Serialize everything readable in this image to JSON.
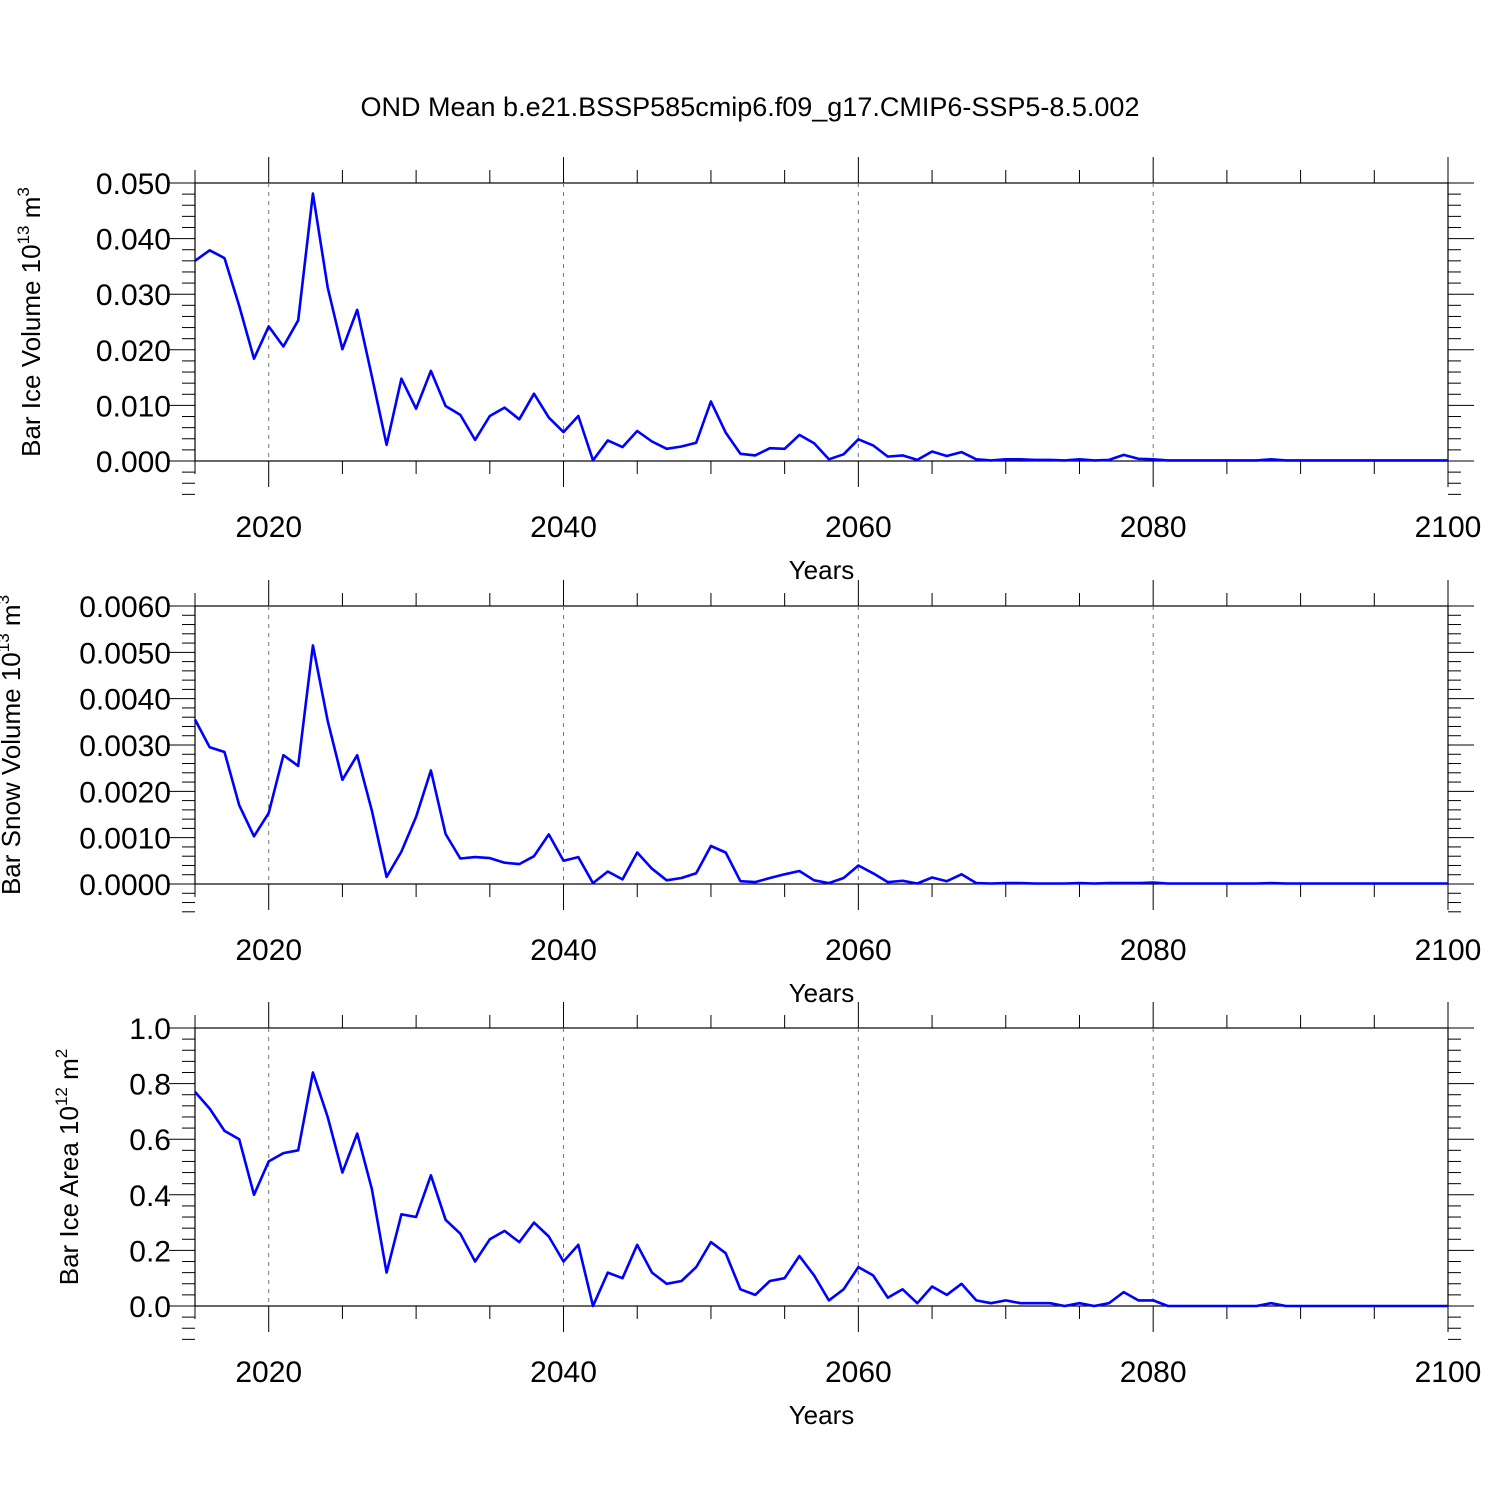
{
  "title": "OND Mean b.e21.BSSP585cmip6.f09_g17.CMIP6-SSP5-8.5.002",
  "line_color": "#0000ff",
  "chart_data": [
    {
      "type": "line",
      "xlabel": "Years",
      "ylabel": "Bar Ice Volume 10",
      "ylabel_sup1": "13",
      "ylabel_unit": " m",
      "ylabel_sup2": "3",
      "xlim": [
        2015,
        2100
      ],
      "ylim": [
        0,
        0.05
      ],
      "xticks": [
        2020,
        2040,
        2060,
        2080,
        2100
      ],
      "xtick_labels": [
        "2020",
        "2040",
        "2060",
        "2080",
        "2100"
      ],
      "yticks": [
        0,
        0.01,
        0.02,
        0.03,
        0.04,
        0.05
      ],
      "ytick_labels": [
        "0.000",
        "0.010",
        "0.020",
        "0.030",
        "0.040",
        "0.050"
      ],
      "x": [
        2015,
        2016,
        2017,
        2018,
        2019,
        2020,
        2021,
        2022,
        2023,
        2024,
        2025,
        2026,
        2027,
        2028,
        2029,
        2030,
        2031,
        2032,
        2033,
        2034,
        2035,
        2036,
        2037,
        2038,
        2039,
        2040,
        2041,
        2042,
        2043,
        2044,
        2045,
        2046,
        2047,
        2048,
        2049,
        2050,
        2051,
        2052,
        2053,
        2054,
        2055,
        2056,
        2057,
        2058,
        2059,
        2060,
        2061,
        2062,
        2063,
        2064,
        2065,
        2066,
        2067,
        2068,
        2069,
        2070,
        2071,
        2072,
        2073,
        2074,
        2075,
        2076,
        2077,
        2078,
        2079,
        2080,
        2081,
        2082,
        2083,
        2084,
        2085,
        2086,
        2087,
        2088,
        2089,
        2090,
        2091,
        2092,
        2093,
        2094,
        2095,
        2096,
        2097,
        2098,
        2099,
        2100
      ],
      "values": [
        0.036,
        0.0379,
        0.0365,
        0.0279,
        0.0184,
        0.0242,
        0.0206,
        0.0253,
        0.0481,
        0.0312,
        0.0201,
        0.0272,
        0.0152,
        0.0029,
        0.0148,
        0.0094,
        0.0162,
        0.0099,
        0.0083,
        0.0038,
        0.0081,
        0.0096,
        0.0075,
        0.0121,
        0.0078,
        0.0052,
        0.0081,
        0.0001,
        0.0037,
        0.0025,
        0.0054,
        0.0035,
        0.0022,
        0.0026,
        0.0033,
        0.0107,
        0.0051,
        0.0013,
        0.001,
        0.0023,
        0.0022,
        0.0047,
        0.0032,
        0.0003,
        0.0012,
        0.0039,
        0.0028,
        0.0008,
        0.001,
        0.0002,
        0.0017,
        0.0009,
        0.0016,
        0.0003,
        0.0001,
        0.0003,
        0.0003,
        0.0002,
        0.0002,
        0.0001,
        0.0003,
        0.0001,
        0.0002,
        0.0011,
        0.0004,
        0.0003,
        0.0001,
        0.0001,
        0.0001,
        0.0001,
        0.0001,
        0.0001,
        0.0001,
        0.0003,
        0.0001,
        0.0001,
        0.0001,
        0.0001,
        0.0001,
        0.0001,
        0.0001,
        0.0001,
        0.0001,
        0.0001,
        0.0001,
        0.0001
      ]
    },
    {
      "type": "line",
      "xlabel": "Years",
      "ylabel": "Bar Snow Volume 10",
      "ylabel_sup1": "13",
      "ylabel_unit": " m",
      "ylabel_sup2": "3",
      "xlim": [
        2015,
        2100
      ],
      "ylim": [
        0,
        0.006
      ],
      "xticks": [
        2020,
        2040,
        2060,
        2080,
        2100
      ],
      "xtick_labels": [
        "2020",
        "2040",
        "2060",
        "2080",
        "2100"
      ],
      "yticks": [
        0,
        0.001,
        0.002,
        0.003,
        0.004,
        0.005,
        0.006
      ],
      "ytick_labels": [
        "0.0000",
        "0.0010",
        "0.0020",
        "0.0030",
        "0.0040",
        "0.0050",
        "0.0060"
      ],
      "x": [
        2015,
        2016,
        2017,
        2018,
        2019,
        2020,
        2021,
        2022,
        2023,
        2024,
        2025,
        2026,
        2027,
        2028,
        2029,
        2030,
        2031,
        2032,
        2033,
        2034,
        2035,
        2036,
        2037,
        2038,
        2039,
        2040,
        2041,
        2042,
        2043,
        2044,
        2045,
        2046,
        2047,
        2048,
        2049,
        2050,
        2051,
        2052,
        2053,
        2054,
        2055,
        2056,
        2057,
        2058,
        2059,
        2060,
        2061,
        2062,
        2063,
        2064,
        2065,
        2066,
        2067,
        2068,
        2069,
        2070,
        2071,
        2072,
        2073,
        2074,
        2075,
        2076,
        2077,
        2078,
        2079,
        2080,
        2081,
        2082,
        2083,
        2084,
        2085,
        2086,
        2087,
        2088,
        2089,
        2090,
        2091,
        2092,
        2093,
        2094,
        2095,
        2096,
        2097,
        2098,
        2099,
        2100
      ],
      "values": [
        0.00355,
        0.00295,
        0.00285,
        0.0017,
        0.00103,
        0.00153,
        0.00278,
        0.00255,
        0.00515,
        0.00352,
        0.00225,
        0.00278,
        0.00158,
        0.00015,
        0.0007,
        0.00145,
        0.00245,
        0.00108,
        0.00055,
        0.00058,
        0.00056,
        0.00046,
        0.00043,
        0.0006,
        0.00107,
        0.0005,
        0.00058,
        2e-05,
        0.00027,
        0.0001,
        0.00068,
        0.00033,
        8e-05,
        0.00013,
        0.00023,
        0.00082,
        0.00068,
        6e-05,
        4e-05,
        0.00013,
        0.00021,
        0.00028,
        8e-05,
        2e-05,
        0.00013,
        0.0004,
        0.00023,
        4e-05,
        7e-05,
        1e-05,
        0.00014,
        6e-05,
        0.00021,
        2e-05,
        1e-05,
        2e-05,
        2e-05,
        1e-05,
        1e-05,
        1e-05,
        2e-05,
        1e-05,
        2e-05,
        2e-05,
        2e-05,
        3e-05,
        1e-05,
        1e-05,
        1e-05,
        1e-05,
        1e-05,
        1e-05,
        1e-05,
        2e-05,
        1e-05,
        1e-05,
        1e-05,
        1e-05,
        1e-05,
        1e-05,
        1e-05,
        1e-05,
        1e-05,
        1e-05,
        1e-05,
        1e-05
      ]
    },
    {
      "type": "line",
      "xlabel": "Years",
      "ylabel": "Bar Ice Area 10",
      "ylabel_sup1": "12",
      "ylabel_unit": " m",
      "ylabel_sup2": "2",
      "xlim": [
        2015,
        2100
      ],
      "ylim": [
        0,
        1.0
      ],
      "xticks": [
        2020,
        2040,
        2060,
        2080,
        2100
      ],
      "xtick_labels": [
        "2020",
        "2040",
        "2060",
        "2080",
        "2100"
      ],
      "yticks": [
        0,
        0.2,
        0.4,
        0.6,
        0.8,
        1.0
      ],
      "ytick_labels": [
        "0.0",
        "0.2",
        "0.4",
        "0.6",
        "0.8",
        "1.0"
      ],
      "x": [
        2015,
        2016,
        2017,
        2018,
        2019,
        2020,
        2021,
        2022,
        2023,
        2024,
        2025,
        2026,
        2027,
        2028,
        2029,
        2030,
        2031,
        2032,
        2033,
        2034,
        2035,
        2036,
        2037,
        2038,
        2039,
        2040,
        2041,
        2042,
        2043,
        2044,
        2045,
        2046,
        2047,
        2048,
        2049,
        2050,
        2051,
        2052,
        2053,
        2054,
        2055,
        2056,
        2057,
        2058,
        2059,
        2060,
        2061,
        2062,
        2063,
        2064,
        2065,
        2066,
        2067,
        2068,
        2069,
        2070,
        2071,
        2072,
        2073,
        2074,
        2075,
        2076,
        2077,
        2078,
        2079,
        2080,
        2081,
        2082,
        2083,
        2084,
        2085,
        2086,
        2087,
        2088,
        2089,
        2090,
        2091,
        2092,
        2093,
        2094,
        2095,
        2096,
        2097,
        2098,
        2099,
        2100
      ],
      "values": [
        0.77,
        0.71,
        0.63,
        0.6,
        0.4,
        0.52,
        0.55,
        0.56,
        0.84,
        0.68,
        0.48,
        0.62,
        0.42,
        0.12,
        0.33,
        0.32,
        0.47,
        0.31,
        0.26,
        0.16,
        0.24,
        0.27,
        0.23,
        0.3,
        0.25,
        0.16,
        0.22,
        0.0,
        0.12,
        0.1,
        0.22,
        0.12,
        0.08,
        0.09,
        0.14,
        0.23,
        0.19,
        0.06,
        0.04,
        0.09,
        0.1,
        0.18,
        0.11,
        0.02,
        0.06,
        0.14,
        0.11,
        0.03,
        0.06,
        0.01,
        0.07,
        0.04,
        0.08,
        0.02,
        0.01,
        0.02,
        0.01,
        0.01,
        0.01,
        0.0,
        0.01,
        0.0,
        0.01,
        0.05,
        0.02,
        0.02,
        0.0,
        0.0,
        0.0,
        0.0,
        0.0,
        0.0,
        0.0,
        0.01,
        0.0,
        0.0,
        0.0,
        0.0,
        0.0,
        0.0,
        0.0,
        0.0,
        0.0,
        0.0,
        0.0,
        0.0
      ]
    }
  ]
}
